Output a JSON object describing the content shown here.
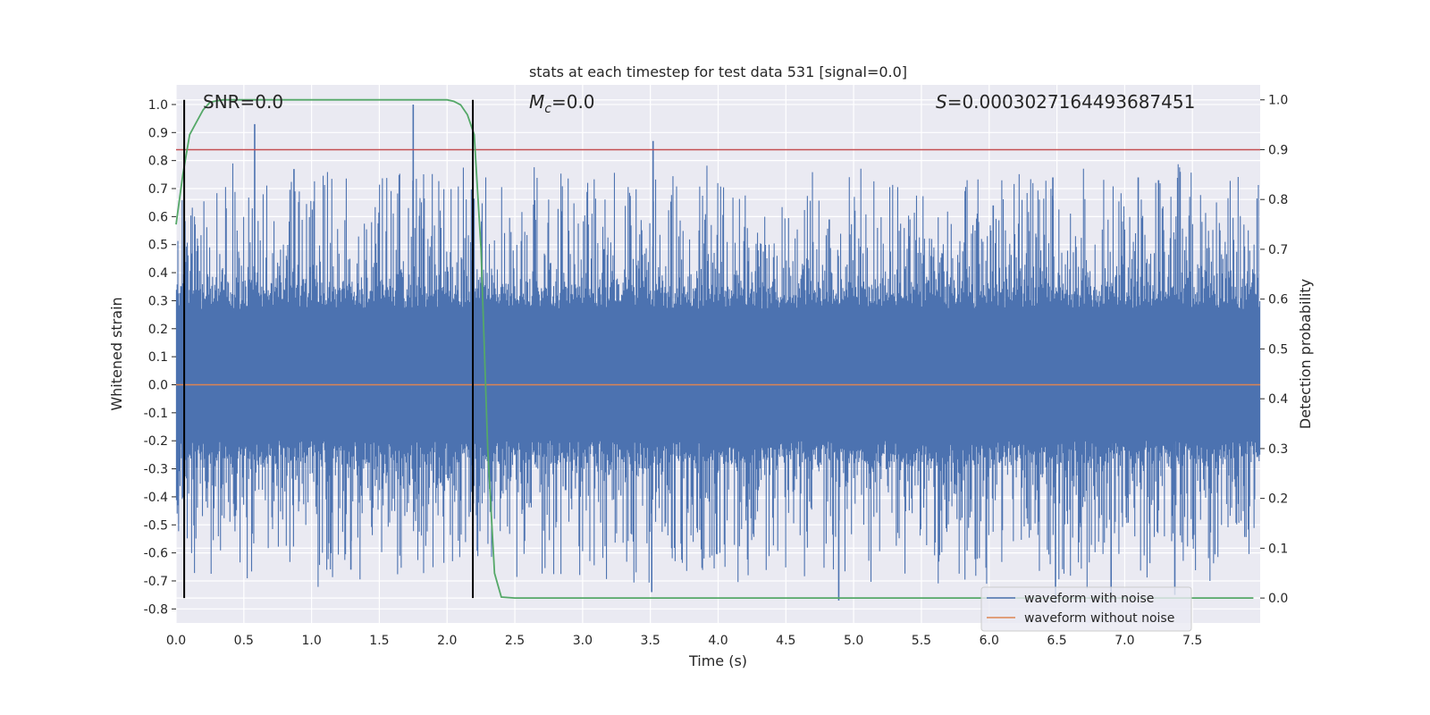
{
  "chart_data": {
    "type": "line",
    "title": "stats at each timestep for test data 531 [signal=0.0]",
    "xlabel": "Time (s)",
    "ylabel_left": "Whitened strain",
    "ylabel_right": "Detection probability",
    "xlim": [
      0.0,
      8.0
    ],
    "ylim_left": [
      -0.85,
      1.07
    ],
    "ylim_right": [
      -0.05,
      1.03
    ],
    "xticks": [
      "0.0",
      "0.5",
      "1.0",
      "1.5",
      "2.0",
      "2.5",
      "3.0",
      "3.5",
      "4.0",
      "4.5",
      "5.0",
      "5.5",
      "6.0",
      "6.5",
      "7.0",
      "7.5"
    ],
    "yticks_left": [
      "1.0",
      "0.9",
      "0.8",
      "0.7",
      "0.6",
      "0.5",
      "0.4",
      "0.3",
      "0.2",
      "0.1",
      "0.0",
      "-0.1",
      "-0.2",
      "-0.3",
      "-0.4",
      "-0.5",
      "-0.6",
      "-0.7",
      "-0.8"
    ],
    "yticks_right": [
      "1.0",
      "0.9",
      "0.8",
      "0.7",
      "0.6",
      "0.5",
      "0.4",
      "0.3",
      "0.2",
      "0.1",
      "0.0"
    ],
    "annotations": {
      "snr": "SNR=0.0",
      "mc_symbol": "M",
      "mc_sub": "c",
      "mc_value": "=0.0",
      "s_symbol": "S",
      "s_value": "=0.0003027164493687451"
    },
    "grid": true,
    "legend_position": "lower-right",
    "series": [
      {
        "name": "waveform with noise",
        "color": "#4c72b0",
        "peaks": [
          {
            "x": 0.58,
            "y": 0.93
          },
          {
            "x": 1.75,
            "y": 1.0
          },
          {
            "x": 3.52,
            "y": 0.87
          },
          {
            "x": 0.87,
            "y": 0.77
          },
          {
            "x": 4.82,
            "y": 0.59
          },
          {
            "x": 6.47,
            "y": 0.74
          },
          {
            "x": 7.1,
            "y": 0.74
          },
          {
            "x": 7.25,
            "y": 0.73
          },
          {
            "x": 6.03,
            "y": 0.64
          },
          {
            "x": 3.51,
            "y": -0.74
          },
          {
            "x": 4.89,
            "y": -0.77
          },
          {
            "x": 6.49,
            "y": -0.78
          },
          {
            "x": 6.9,
            "y": -0.77
          },
          {
            "x": 7.37,
            "y": -0.75
          },
          {
            "x": 1.29,
            "y": -0.66
          }
        ]
      },
      {
        "name": "waveform without noise",
        "color": "#dd8452",
        "value": 0.0
      },
      {
        "name": "detection probability",
        "color": "#55a868",
        "x": [
          0.0,
          0.05,
          0.1,
          0.15,
          0.2,
          0.25,
          0.3,
          0.35,
          0.4,
          0.5,
          1.0,
          1.5,
          1.9,
          2.0,
          2.05,
          2.1,
          2.15,
          2.2,
          2.25,
          2.3,
          2.35,
          2.4,
          2.5,
          3.0,
          4.0,
          5.0,
          6.0,
          7.0,
          7.95
        ],
        "y": [
          0.75,
          0.85,
          0.93,
          0.955,
          0.98,
          0.995,
          0.998,
          1.0,
          1.0,
          1.0,
          1.0,
          1.0,
          1.0,
          1.0,
          0.997,
          0.99,
          0.97,
          0.93,
          0.7,
          0.3,
          0.05,
          0.002,
          0.0,
          0.0,
          0.0,
          0.0,
          0.0,
          0.0,
          0.0
        ]
      }
    ],
    "threshold_right": {
      "value": 0.9,
      "color": "#c44e52"
    },
    "vlines": [
      {
        "x": 0.06,
        "ymin": 0.0,
        "ymax": 1.0
      },
      {
        "x": 2.19,
        "ymin": 0.0,
        "ymax": 1.0
      }
    ]
  }
}
